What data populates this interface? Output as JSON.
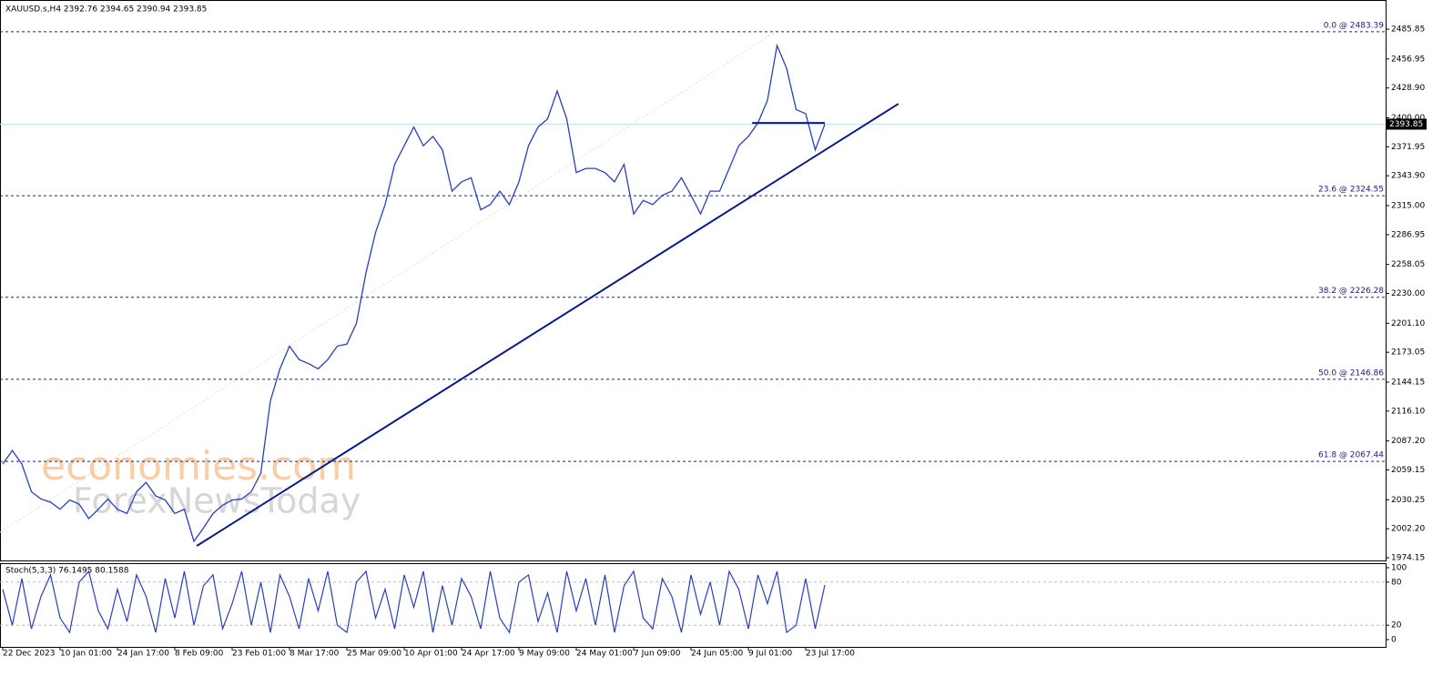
{
  "chart_data": {
    "type": "line",
    "header": "XAUUSD.s,H4  2392.76 2394.65 2390.94 2393.85",
    "watermark": [
      "economies.com",
      "ForexNewsToday"
    ],
    "categories": [
      "22 Dec 2023",
      null,
      null,
      null,
      null,
      null,
      "10 Jan 01:00",
      null,
      null,
      null,
      null,
      null,
      "24 Jan 17:00",
      null,
      null,
      null,
      null,
      null,
      "8 Feb 09:00",
      null,
      null,
      null,
      null,
      null,
      "23 Feb 01:00",
      null,
      null,
      null,
      null,
      null,
      "8 Mar 17:00",
      null,
      null,
      null,
      null,
      null,
      "25 Mar 09:00",
      null,
      null,
      null,
      null,
      null,
      "10 Apr 01:00",
      null,
      null,
      null,
      null,
      null,
      "24 Apr 17:00",
      null,
      null,
      null,
      null,
      null,
      "9 May 09:00",
      null,
      null,
      null,
      null,
      null,
      "24 May 01:00",
      null,
      null,
      null,
      null,
      null,
      "7 Jun 09:00",
      null,
      null,
      null,
      null,
      null,
      "24 Jun 05:00",
      null,
      null,
      null,
      null,
      null,
      "9 Jul 01:00",
      null,
      null,
      null,
      null,
      null,
      "23 Jul 17:00",
      null,
      null
    ],
    "values": [
      2064.8,
      2078,
      2064.8,
      2038,
      2031,
      2028,
      2021,
      2030,
      2026,
      2012,
      2021,
      2031,
      2021,
      2017,
      2038,
      2047,
      2034,
      2030,
      2017,
      2021,
      1990,
      2003,
      2017,
      2025,
      2030,
      2031,
      2038,
      2056,
      2126,
      2157,
      2179,
      2166,
      2162,
      2157,
      2166,
      2179,
      2181,
      2201,
      2250,
      2289,
      2316,
      2355,
      2373,
      2391,
      2373,
      2382,
      2369,
      2329,
      2338,
      2342,
      2311,
      2316,
      2329,
      2316,
      2338,
      2373,
      2391,
      2399,
      2426,
      2399,
      2347,
      2351,
      2351,
      2347,
      2338,
      2355,
      2307,
      2320,
      2316,
      2325,
      2329,
      2342,
      2325,
      2307,
      2329,
      2329,
      2351,
      2373,
      2382,
      2395,
      2417,
      2470,
      2448,
      2408,
      2404,
      2369,
      2393.85
    ],
    "color": "#2a3fc0",
    "ylim": [
      1971.5,
      2512.3
    ],
    "yticks": [
      2485.85,
      2456.95,
      {
        "value": 2428.9,
        "label": "2428.90"
      },
      {
        "value": 2400,
        "label": "2400.00"
      },
      2371.95,
      {
        "value": 2343.9,
        "label": "2343.90"
      },
      {
        "value": 2315,
        "label": "2315.00"
      },
      2286.95,
      2258.05,
      {
        "value": 2230,
        "label": "2230.00"
      },
      {
        "value": 2201.1,
        "label": "2201.10"
      },
      2173.05,
      2144.15,
      {
        "value": 2116.1,
        "label": "2116.10"
      },
      {
        "value": 2087.2,
        "label": "2087.20"
      },
      2059.15,
      2030.25,
      {
        "value": 2002.2,
        "label": "2002.20"
      },
      1974.15
    ],
    "current_price": 2393.85,
    "fib_levels": [
      {
        "value": 2483.39,
        "label": "0.0 @ 2483.39"
      },
      {
        "value": 2324.55,
        "label": "23.6 @ 2324.55"
      },
      {
        "value": 2226.28,
        "label": "38.2 @ 2226.28"
      },
      {
        "value": 2146.86,
        "label": "50.0 @ 2146.86"
      },
      {
        "value": 2067.44,
        "label": "61.8 @ 2067.44"
      }
    ],
    "trendline": {
      "x": [
        20.3,
        93.7
      ],
      "values": [
        1985.6,
        2413.6
      ],
      "color": "#0a1a8c"
    },
    "neckline": {
      "x": [
        78.4,
        86
      ],
      "values": [
        2395,
        2395
      ],
      "color": "#0a1a8c"
    },
    "stoch": {
      "label": "Stoch(5,3,3) 76.1495 80.1588",
      "values": [
        70,
        20,
        85,
        15,
        60,
        90,
        30,
        10,
        80,
        95,
        40,
        15,
        70,
        25,
        90,
        60,
        10,
        85,
        30,
        95,
        20,
        75,
        90,
        15,
        50,
        95,
        20,
        80,
        10,
        90,
        60,
        15,
        85,
        40,
        95,
        20,
        10,
        80,
        95,
        30,
        70,
        15,
        90,
        45,
        95,
        10,
        75,
        20,
        85,
        60,
        15,
        95,
        30,
        10,
        80,
        90,
        25,
        65,
        10,
        95,
        40,
        85,
        20,
        90,
        10,
        75,
        95,
        30,
        15,
        85,
        60,
        10,
        90,
        35,
        80,
        20,
        95,
        70,
        15,
        90,
        50,
        95,
        10,
        20,
        85,
        15,
        76
      ],
      "color": "#2a3fc0",
      "ylim": [
        -11.4,
        106.3
      ],
      "yticks": [
        100,
        80,
        20,
        0
      ],
      "levels": [
        80,
        20
      ]
    }
  }
}
